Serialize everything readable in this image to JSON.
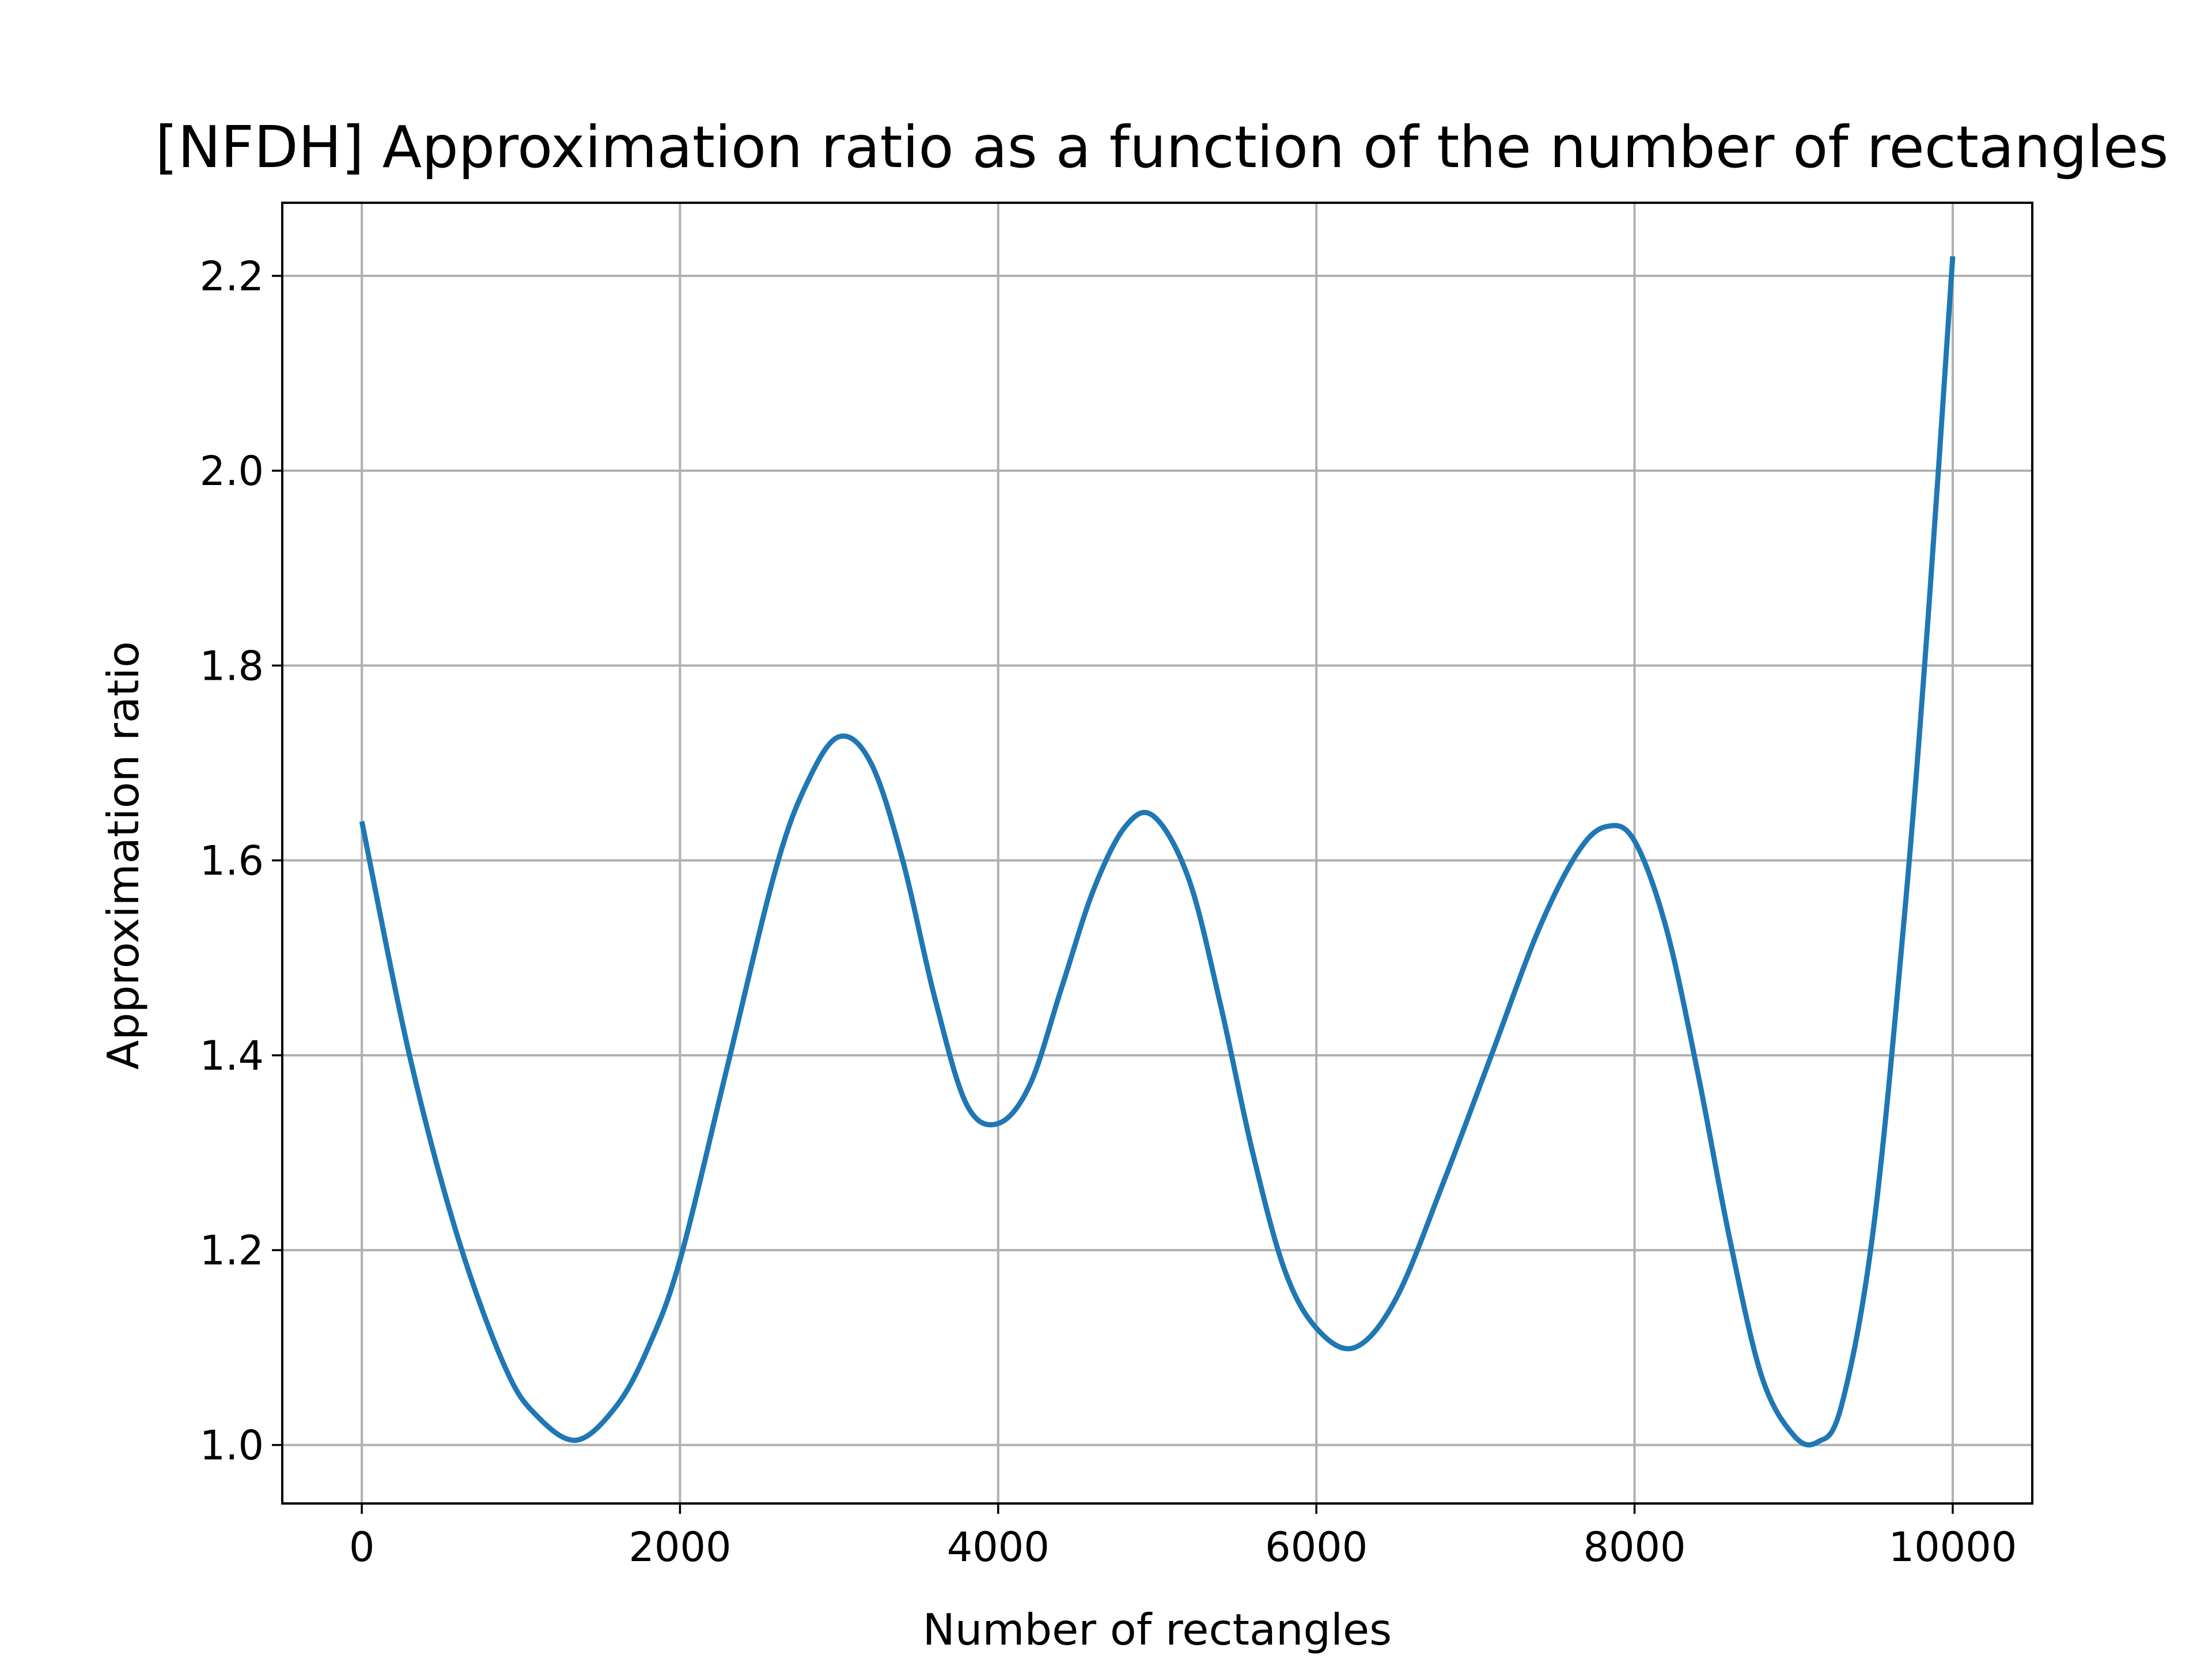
{
  "colors": {
    "series": "#1f77b4",
    "grid": "#b0b0b0",
    "axis": "#000000",
    "background": "#ffffff"
  },
  "chart_data": {
    "type": "line",
    "title": "[NFDH] Approximation ratio as a function of the number of rectangles",
    "xlabel": "Number of rectangles",
    "ylabel": "Approximation ratio",
    "xlim": [
      -500,
      10500
    ],
    "ylim": [
      0.94,
      2.275
    ],
    "grid": true,
    "legend": "none",
    "x_ticks": [
      0,
      2000,
      4000,
      6000,
      8000,
      10000
    ],
    "x_tick_labels": [
      "0",
      "2000",
      "4000",
      "6000",
      "8000",
      "10000"
    ],
    "y_ticks": [
      1.0,
      1.2,
      1.4,
      1.6,
      1.8,
      2.0,
      2.2
    ],
    "y_tick_labels": [
      "1.0",
      "1.2",
      "1.4",
      "1.6",
      "1.8",
      "2.0",
      "2.2"
    ],
    "series": [
      {
        "name": "NFDH approximation ratio",
        "x": [
          0,
          300,
          600,
          900,
          1100,
          1350,
          1600,
          1800,
          2000,
          2300,
          2600,
          2800,
          3000,
          3200,
          3400,
          3600,
          3800,
          4000,
          4200,
          4400,
          4600,
          4800,
          4980,
          5200,
          5400,
          5600,
          5800,
          6000,
          6240,
          6500,
          6800,
          7100,
          7400,
          7650,
          7830,
          8000,
          8200,
          8400,
          8600,
          8800,
          9000,
          9150,
          9300,
          9500,
          9700,
          9850,
          10000
        ],
        "values": [
          1.64,
          1.4,
          1.215,
          1.08,
          1.03,
          1.005,
          1.04,
          1.1,
          1.19,
          1.39,
          1.59,
          1.68,
          1.727,
          1.7,
          1.6,
          1.46,
          1.35,
          1.33,
          1.37,
          1.47,
          1.57,
          1.635,
          1.645,
          1.58,
          1.45,
          1.3,
          1.18,
          1.12,
          1.1,
          1.15,
          1.27,
          1.4,
          1.53,
          1.61,
          1.635,
          1.62,
          1.53,
          1.38,
          1.21,
          1.07,
          1.01,
          1.003,
          1.04,
          1.22,
          1.55,
          1.86,
          2.22
        ]
      }
    ]
  }
}
